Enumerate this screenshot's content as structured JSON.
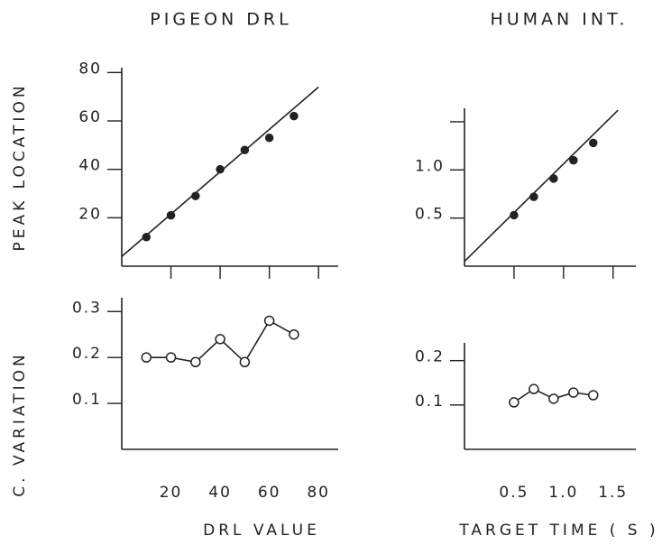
{
  "chart_data": [
    {
      "type": "scatter",
      "title": "PIGEON DRL",
      "ylabel": "PEAK LOCATION",
      "x": [
        10,
        20,
        30,
        40,
        50,
        60,
        70
      ],
      "series": [
        {
          "color": "#222222",
          "values": [
            12,
            21,
            29,
            40,
            48,
            53,
            62
          ],
          "marker": "filled",
          "line": false
        },
        {
          "color": "#222222",
          "x": [
            0,
            80
          ],
          "values": [
            4,
            74
          ],
          "marker": "none",
          "line": true
        }
      ],
      "xlim": [
        0,
        88
      ],
      "xticks": [
        20,
        40,
        60,
        80
      ],
      "xticklabels": false,
      "ylim": [
        0,
        82
      ],
      "yticks": [
        20,
        40,
        60,
        80
      ]
    },
    {
      "type": "scatter",
      "title": "HUMAN INT.",
      "x": [
        0.5,
        0.7,
        0.9,
        1.1,
        1.3
      ],
      "series": [
        {
          "color": "#222222",
          "values": [
            0.53,
            0.72,
            0.91,
            1.1,
            1.28
          ],
          "marker": "filled",
          "line": false
        },
        {
          "color": "#222222",
          "x": [
            0,
            1.55
          ],
          "values": [
            0.05,
            1.62
          ],
          "marker": "none",
          "line": true
        }
      ],
      "xlim": [
        0,
        1.73
      ],
      "xticks": [
        0.5,
        1,
        1.5
      ],
      "xticklabels": false,
      "ylim": [
        0,
        1.64
      ],
      "yticks": [
        0.5,
        {
          "value": 1,
          "label": "1.0"
        }
      ],
      "yticks_unlabeled": [
        1.5
      ]
    },
    {
      "type": "line",
      "ylabel": "C. VARIATION",
      "xlabel": "DRL VALUE",
      "x": [
        10,
        20,
        30,
        40,
        50,
        60,
        70
      ],
      "series": [
        {
          "color": "#222222",
          "values": [
            0.2,
            0.2,
            0.19,
            0.24,
            0.19,
            0.28,
            0.25
          ],
          "marker": "open",
          "line": true
        }
      ],
      "xlim": [
        0,
        88
      ],
      "xticks": [
        20,
        40,
        60,
        80
      ],
      "xtickmarks": false,
      "ylim": [
        0,
        0.33
      ],
      "yticks": [
        0.1,
        0.2,
        0.3
      ]
    },
    {
      "type": "line",
      "xlabel": "TARGET TIME ( S )",
      "x": [
        0.5,
        0.7,
        0.9,
        1.1,
        1.3
      ],
      "series": [
        {
          "color": "#222222",
          "values": [
            0.106,
            0.136,
            0.114,
            0.128,
            0.122
          ],
          "marker": "open",
          "line": true
        }
      ],
      "xlim": [
        0,
        1.73
      ],
      "xticks": [
        0.5,
        {
          "value": 1,
          "label": "1.0"
        },
        1.5
      ],
      "xtickmarks": false,
      "ylim": [
        0,
        0.24
      ],
      "yticks": [
        0.1,
        0.2
      ]
    }
  ]
}
